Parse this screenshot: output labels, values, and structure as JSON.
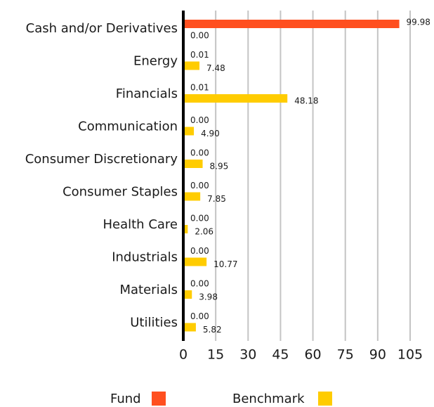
{
  "chart_data": {
    "type": "hbar",
    "categories": [
      "Cash and/or Derivatives",
      "Energy",
      "Financials",
      "Communication",
      "Consumer Discretionary",
      "Consumer Staples",
      "Health Care",
      "Industrials",
      "Materials",
      "Utilities"
    ],
    "series": [
      {
        "name": "Fund",
        "color": "#ff4f1f",
        "values": [
          99.98,
          0.01,
          0.01,
          0,
          0,
          0,
          0,
          0,
          0,
          0
        ],
        "value_labels": [
          "99.98",
          "0.01",
          "0.01",
          "0.00",
          "0.00",
          "0.00",
          "0.00",
          "0.00",
          "0.00",
          "0.00"
        ]
      },
      {
        "name": "Benchmark",
        "color": "#ffcc00",
        "values": [
          0,
          7.48,
          48.18,
          4.9,
          8.95,
          7.85,
          2.06,
          10.77,
          3.98,
          5.82
        ],
        "value_labels": [
          "0.00",
          "7.48",
          "48.18",
          "4.90",
          "8.95",
          "7.85",
          "2.06",
          "10.77",
          "3.98",
          "5.82"
        ]
      }
    ],
    "xlim": [
      0,
      105
    ],
    "xticks": [
      0,
      15,
      30,
      45,
      60,
      75,
      90,
      105
    ],
    "grid": true
  }
}
